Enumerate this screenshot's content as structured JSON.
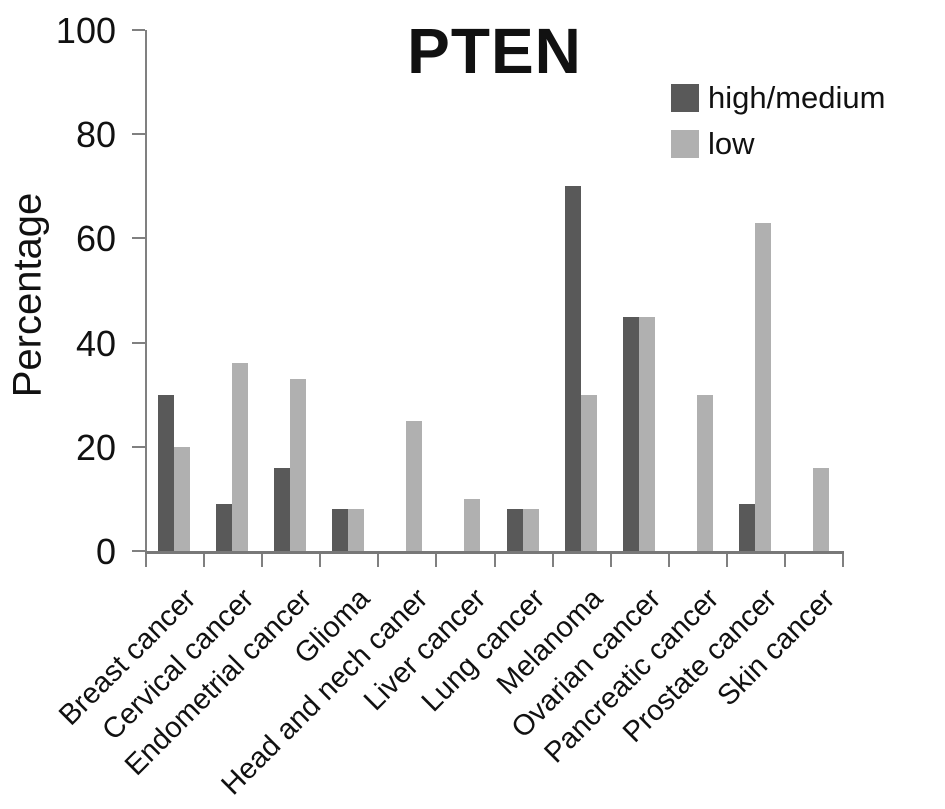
{
  "chart_data": {
    "type": "bar",
    "title": "PTEN",
    "xlabel": "",
    "ylabel": "Percentage",
    "ylim": [
      0,
      100
    ],
    "yticks": [
      0,
      20,
      40,
      60,
      80,
      100
    ],
    "grid": false,
    "legend_position": "top-right",
    "categories": [
      "Breast cancer",
      "Cervical cancer",
      "Endometrial cancer",
      "Glioma",
      "Head and nech caner",
      "Liver cancer",
      "Lung cancer",
      "Melanoma",
      "Ovarian cancer",
      "Pancreatic cancer",
      "Prostate cancer",
      "Skin cancer"
    ],
    "series": [
      {
        "name": "high/medium",
        "color": "#595959",
        "values": [
          30,
          9,
          16,
          8,
          0,
          0,
          8,
          70,
          45,
          0,
          9,
          0
        ]
      },
      {
        "name": "low",
        "color": "#b0b0b0",
        "values": [
          20,
          36,
          33,
          8,
          25,
          10,
          8,
          30,
          45,
          30,
          63,
          16
        ]
      }
    ]
  },
  "colors": {
    "axis": "#808080",
    "text": "#111111",
    "background": "#ffffff"
  }
}
